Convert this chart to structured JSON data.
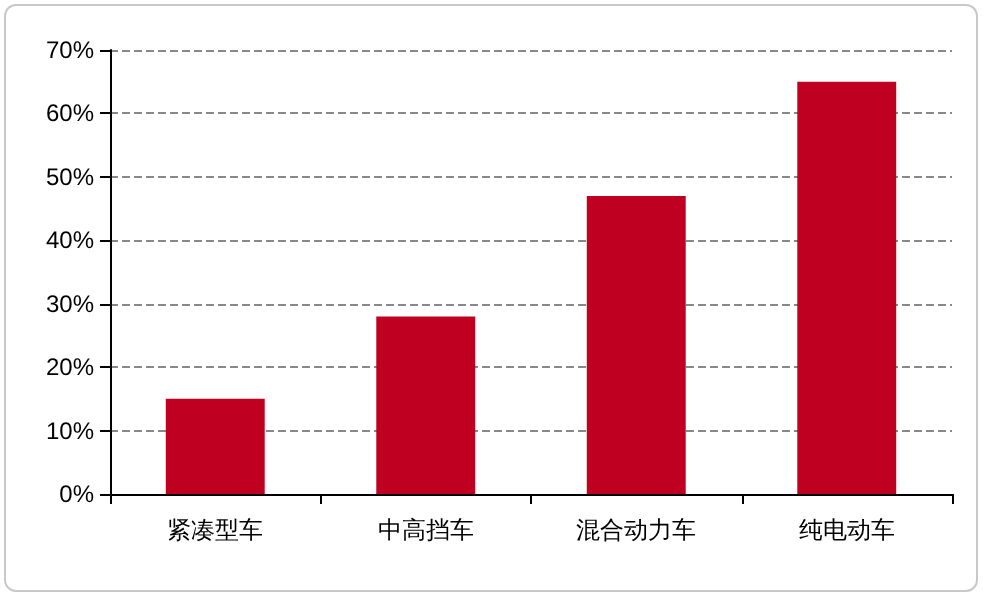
{
  "chart_data": {
    "type": "bar",
    "categories": [
      "紧凑型车",
      "中高挡车",
      "混合动力车",
      "纯电动车"
    ],
    "values": [
      15,
      28,
      47,
      65
    ],
    "color": "#c00020",
    "ylim": [
      0,
      70
    ],
    "yticks": [
      {
        "value": 0,
        "label": "0%"
      },
      {
        "value": 10,
        "label": "10%"
      },
      {
        "value": 20,
        "label": "20%"
      },
      {
        "value": 30,
        "label": "30%"
      },
      {
        "value": 40,
        "label": "40%"
      },
      {
        "value": 50,
        "label": "50%"
      },
      {
        "value": 60,
        "label": "60%"
      },
      {
        "value": 70,
        "label": "70%"
      }
    ],
    "grid": "y"
  }
}
